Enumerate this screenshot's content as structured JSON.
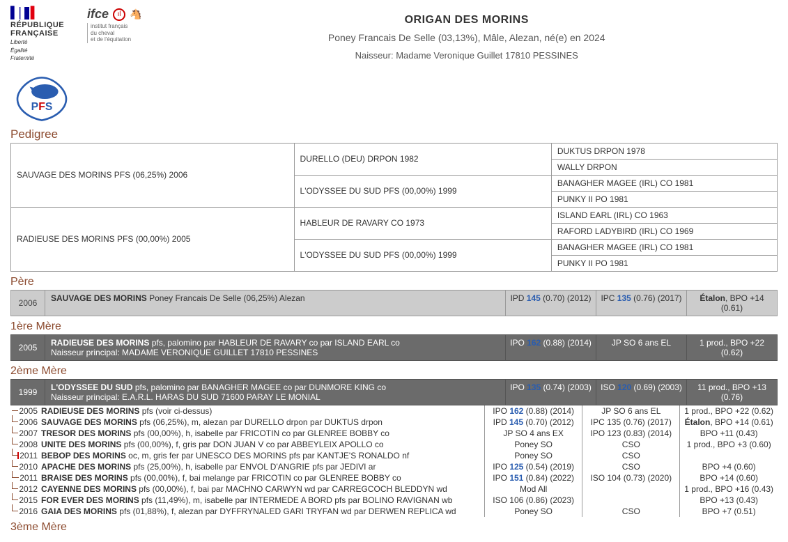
{
  "header": {
    "rf_line1": "RÉPUBLIQUE",
    "rf_line2": "FRANÇAISE",
    "rf_motto1": "Liberté",
    "rf_motto2": "Égalité",
    "rf_motto3": "Fraternité",
    "ifce_name": "ifce",
    "ifce_sub1": "institut français",
    "ifce_sub2": "du cheval",
    "ifce_sub3": "et de l'équitation"
  },
  "horse": {
    "name": "ORIGAN DES MORINS",
    "subtitle": "Poney Francais De Selle (03,13%), Mâle,  Alezan, né(e) en 2024",
    "breeder": "Naisseur: Madame Veronique Guillet 17810 PESSINES"
  },
  "sections": {
    "pedigree": "Pedigree",
    "pere": "Père",
    "mere1": "1ère Mère",
    "mere2": "2ème Mère",
    "mere3": "3ème Mère"
  },
  "pedigree": {
    "sire": "SAUVAGE DES MORINS PFS (06,25%) 2006",
    "dam": "RADIEUSE DES MORINS PFS (00,00%) 2005",
    "ss": "DURELLO (DEU) DRPON 1982",
    "sd": "L'ODYSSEE DU SUD PFS (00,00%) 1999",
    "ds": "HABLEUR DE RAVARY CO 1973",
    "dd": "L'ODYSSEE DU SUD PFS (00,00%) 1999",
    "sss": "DUKTUS DRPON 1978",
    "ssd": "WALLY DRPON",
    "sds": "BANAGHER MAGEE (IRL) CO 1981",
    "sdd": "PUNKY II PO 1981",
    "dss": "ISLAND EARL (IRL) CO 1963",
    "dsd": "RAFORD LADYBIRD (IRL) CO 1969",
    "dds": "BANAGHER MAGEE (IRL) CO 1981",
    "ddd": "PUNKY II PO 1981"
  },
  "pere": {
    "year": "2006",
    "name": "SAUVAGE DES MORINS",
    "desc": " Poney Francais De Selle (06,25%) Alezan",
    "s1_pre": "IPD ",
    "s1_blue": "145",
    "s1_post": " (0.70) (2012)",
    "s2_pre": "IPC ",
    "s2_blue": "135",
    "s2_post": " (0.76) (2017)",
    "s3_bold": "Étalon",
    "s3_post": ", BPO +14 (0.61)"
  },
  "mere1": {
    "year": "2005",
    "name": "RADIEUSE DES MORINS",
    "desc": " pfs, palomino par HABLEUR DE RAVARY co par ISLAND EARL co",
    "desc2": "Naisseur principal: MADAME VERONIQUE GUILLET 17810 PESSINES",
    "s1_pre": "IPO ",
    "s1_blue": "162",
    "s1_post": " (0.88) (2014)",
    "s2": "JP SO 6 ans EL",
    "s3": "1 prod., BPO +22 (0.62)"
  },
  "mere2": {
    "year": "1999",
    "name": "L'ODYSSEE DU SUD",
    "desc": " pfs, palomino par BANAGHER MAGEE co par DUNMORE KING co",
    "desc2": "Naisseur principal: E.A.R.L. HARAS DU SUD 71600 PARAY LE MONIAL",
    "s1_pre": "IPO ",
    "s1_blue": "135",
    "s1_post": " (0.74) (2003)",
    "s2_pre": "ISO ",
    "s2_blue": "120",
    "s2_post": " (0.69) (2003)",
    "s3": "11 prod., BPO +13 (0.76)"
  },
  "offspring": [
    {
      "year": "2005",
      "name": "RADIEUSE DES MORINS",
      "desc": " pfs (voir ci-dessus)",
      "s1_pre": "IPO ",
      "s1_blue": "162",
      "s1_post": " (0.88) (2014)",
      "s2": "JP SO 6 ans EL",
      "s3": "1 prod., BPO +22 (0.62)",
      "redbar": false
    },
    {
      "year": "2006",
      "name": "SAUVAGE DES MORINS",
      "desc": " pfs (06,25%), m, alezan par DURELLO drpon par DUKTUS drpon",
      "s1_pre": "IPD ",
      "s1_blue": "145",
      "s1_post": " (0.70) (2012)",
      "s2": "IPC 135 (0.76) (2017)",
      "s3_bold": "Étalon",
      "s3_post": ", BPO +14 (0.61)",
      "redbar": false
    },
    {
      "year": "2007",
      "name": "TRESOR DES MORINS",
      "desc": " pfs (00,00%), h, isabelle par FRICOTIN co par GLENREE BOBBY co",
      "s1": "JP SO 4 ans EX",
      "s2": "IPO 123 (0.83) (2014)",
      "s3": "BPO +11 (0.43)",
      "redbar": false
    },
    {
      "year": "2008",
      "name": "UNITE DES MORINS",
      "desc": " pfs (00,00%), f, gris par DON JUAN V co par ABBEYLEIX APOLLO co",
      "s1": "Poney SO",
      "s2": "CSO",
      "s3": "1 prod., BPO +3 (0.60)",
      "redbar": false
    },
    {
      "year": "2011",
      "name": "BEBOP DES MORINS",
      "desc": " oc, m, gris fer par UNESCO DES MORINS pfs par KANTJE'S RONALDO nf",
      "s1": "Poney SO",
      "s2": "CSO",
      "s3": "",
      "redbar": true
    },
    {
      "year": "2010",
      "name": "APACHE DES MORINS",
      "desc": " pfs (25,00%), h, isabelle par ENVOL D'ANGRIE pfs par JEDIVI ar",
      "s1_pre": "IPO ",
      "s1_blue": "125",
      "s1_post": " (0.54) (2019)",
      "s2": "CSO",
      "s3": "BPO +4 (0.60)",
      "redbar": false
    },
    {
      "year": "2011",
      "name": "BRAISE DES MORINS",
      "desc": " pfs (00,00%), f, bai melange par FRICOTIN co par GLENREE BOBBY co",
      "s1_pre": "IPO ",
      "s1_blue": "151",
      "s1_post": " (0.84) (2022)",
      "s2": "ISO 104 (0.73) (2020)",
      "s3": "BPO +14 (0.60)",
      "redbar": false
    },
    {
      "year": "2012",
      "name": "CAYENNE DES MORINS",
      "desc": " pfs (00,00%), f, bai par MACHNO CARWYN wd par CARREGCOCH BLEDDYN wd",
      "s1": "Mod All",
      "s2": "",
      "s3": "1 prod., BPO +16 (0.43)",
      "redbar": false
    },
    {
      "year": "2015",
      "name": "FOR EVER DES MORINS",
      "desc": " pfs (11,49%), m, isabelle par INTERMEDE A BORD pfs par BOLINO RAVIGNAN wb",
      "s1": "ISO 106 (0.86) (2023)",
      "s2": "",
      "s3": "BPO +13 (0.43)",
      "redbar": false
    },
    {
      "year": "2016",
      "name": "GAIA DES MORINS",
      "desc": " pfs (01,88%), f, alezan par DYFFRYNALED GARI TRYFAN wd par DERWEN REPLICA wd",
      "s1": "Poney SO",
      "s2": "CSO",
      "s3": "BPO +7 (0.51)",
      "redbar": false
    }
  ]
}
